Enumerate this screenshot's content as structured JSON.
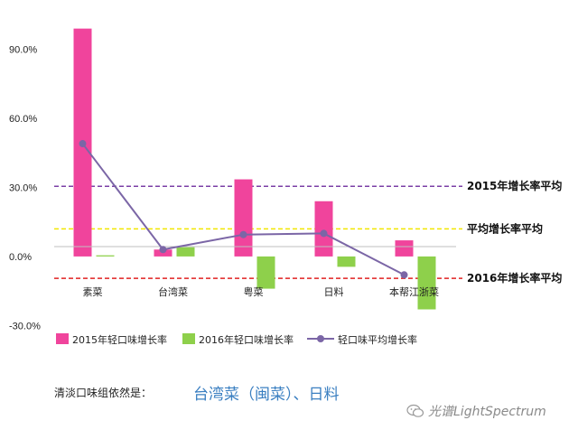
{
  "chart_data": {
    "type": "bar",
    "categories": [
      "素菜",
      "台湾菜",
      "粤菜",
      "日料",
      "本帮江浙菜"
    ],
    "series": [
      {
        "name": "2015年轻口味增长率",
        "type": "bar",
        "color": "#f0449c",
        "values": [
          99.0,
          3.0,
          33.5,
          24.0,
          7.0
        ]
      },
      {
        "name": "2016年轻口味增长率",
        "type": "bar",
        "color": "#8ed04b",
        "values": [
          0.5,
          4.0,
          -14.0,
          -4.5,
          -23.0
        ]
      },
      {
        "name": "轻口味平均增长率",
        "type": "line",
        "color": "#7b66a6",
        "values": [
          49.0,
          3.0,
          9.5,
          10.0,
          -8.0
        ]
      }
    ],
    "yticks": [
      "-30.0%",
      "0.0%",
      "30.0%",
      "60.0%",
      "90.0%"
    ],
    "ytick_values": [
      -30,
      0,
      30,
      60,
      90
    ],
    "ylim": [
      -33,
      102
    ],
    "reference_lines": [
      {
        "label": "2015年增长率平均",
        "value": 30.5,
        "color": "#7b3fa6"
      },
      {
        "label": "平均增长率平均",
        "value": 12.0,
        "color": "#f2e600"
      },
      {
        "label": "2016年增长率平均",
        "value": -9.5,
        "color": "#e02020"
      }
    ]
  },
  "caption": {
    "label": "清淡口味组依然是：",
    "highlight": "台湾菜（闽菜）、日料"
  },
  "watermark": "光谱LightSpectrum"
}
